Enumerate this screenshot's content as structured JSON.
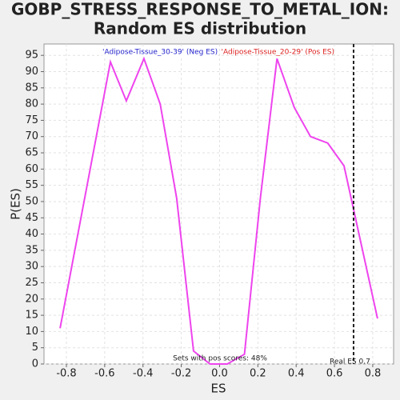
{
  "chart_data": {
    "type": "line",
    "title": "GOBP_STRESS_RESPONSE_TO_METAL_ION:",
    "subtitle": "Random ES distribution",
    "xlabel": "ES",
    "ylabel": "P(ES)",
    "x": [
      -0.833,
      -0.57,
      -0.487,
      -0.395,
      -0.31,
      -0.224,
      -0.136,
      -0.05,
      0.04,
      0.13,
      0.213,
      0.3,
      0.39,
      0.475,
      0.565,
      0.65,
      0.825
    ],
    "series": [
      {
        "name": "P(ES)",
        "color": "#ee44ee",
        "values": [
          11,
          93,
          81,
          94,
          80,
          51,
          4,
          0,
          0,
          3,
          51,
          94,
          79,
          70,
          68,
          61,
          14
        ]
      }
    ],
    "xlim": [
      -0.917,
      0.909
    ],
    "ylim": [
      0,
      98.5
    ],
    "xticks": [
      -0.8,
      -0.6,
      -0.4,
      -0.2,
      {
        "value": 0,
        "label": "0.0"
      },
      0.2,
      0.4,
      0.6,
      0.8
    ],
    "yticks": [
      0,
      5,
      10,
      15,
      20,
      25,
      30,
      35,
      40,
      45,
      50,
      55,
      60,
      65,
      70,
      75,
      80,
      85,
      90,
      95
    ],
    "grid": true,
    "legend": [
      {
        "text": "'Adipose-Tissue_30-39' (Neg ES)",
        "color": "#2222cc"
      },
      {
        "text": "'Adipose-Tissue_20-29' (Pos ES)",
        "color": "#dd2222"
      }
    ],
    "real_es": {
      "value": 0.7,
      "label": "Real ES 0.7"
    },
    "annotation": "Sets with pos scores: 48%"
  }
}
